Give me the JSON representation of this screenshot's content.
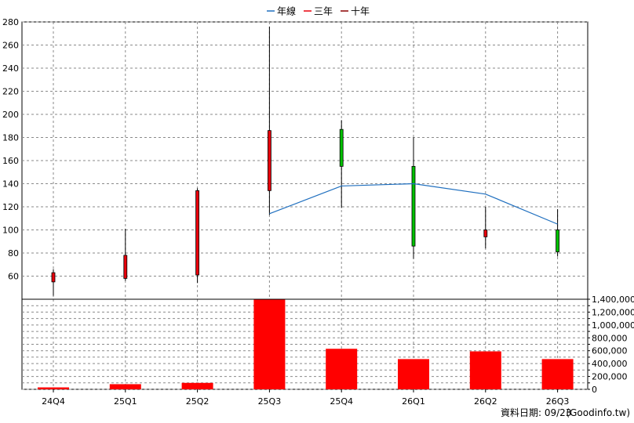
{
  "chart_data": {
    "type": "candlestick+line+bar",
    "categories": [
      "24Q4",
      "25Q1",
      "25Q2",
      "25Q3",
      "25Q4",
      "26Q1",
      "26Q2",
      "26Q3"
    ],
    "legend": [
      {
        "name": "年線",
        "color": "#1f6fbf"
      },
      {
        "name": "三年",
        "color": "#e8000b"
      },
      {
        "name": "十年",
        "color": "#8b0000"
      }
    ],
    "legend_position": "top-center",
    "price_axis": {
      "ylim": [
        40,
        280
      ],
      "ticks": [
        60,
        80,
        100,
        120,
        140,
        160,
        180,
        200,
        220,
        240,
        260,
        280
      ]
    },
    "candles": [
      {
        "open": 55,
        "close": 63,
        "high": 66,
        "low": 43
      },
      {
        "open": 58,
        "close": 78,
        "high": 101,
        "low": 56
      },
      {
        "open": 61,
        "close": 134,
        "high": 136,
        "low": 54
      },
      {
        "open": 134,
        "close": 186,
        "high": 276,
        "low": 113
      },
      {
        "open": 187,
        "close": 155,
        "high": 195,
        "low": 119
      },
      {
        "open": 155,
        "close": 86,
        "high": 180,
        "low": 75
      },
      {
        "open": 94,
        "close": 100,
        "high": 120,
        "low": 84
      },
      {
        "open": 100,
        "close": 81,
        "high": 118,
        "low": 77
      }
    ],
    "series": [
      {
        "name": "年線",
        "values": [
          null,
          null,
          null,
          114,
          138,
          140,
          131,
          105
        ]
      }
    ],
    "volume": {
      "values": [
        30000,
        80000,
        100000,
        1420000,
        630000,
        470000,
        590000,
        470000
      ],
      "ylim": [
        0,
        1400000
      ],
      "tick_labels": [
        "0",
        "200,000",
        "400,000",
        "600,000",
        "800,000",
        "1,000,000",
        "1,200,000",
        "1,400,000"
      ]
    },
    "grid": true
  },
  "footer": {
    "date_label": "資料日期: 09/23",
    "source": "(Goodinfo.tw)"
  },
  "colors": {
    "up": "#e8000b",
    "down": "#00c000",
    "volume": "#ff0000",
    "line": "#1f6fbf",
    "grid": "#8a8a8a"
  }
}
